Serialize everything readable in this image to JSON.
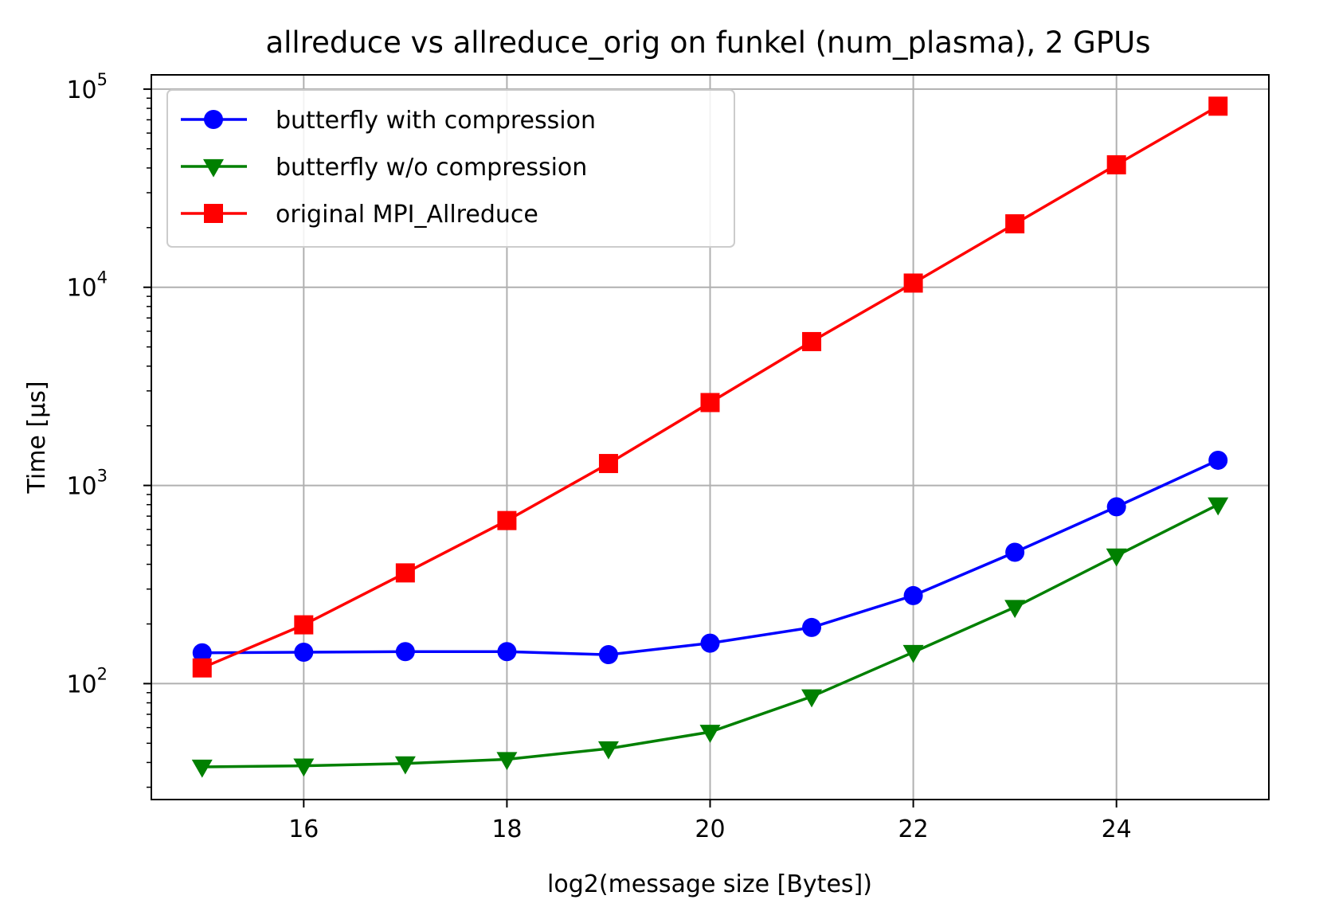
{
  "chart_data": {
    "type": "line",
    "title": "allreduce vs allreduce_orig on funkel (num_plasma), 2 GPUs",
    "xlabel": "log2(message size [Bytes])",
    "ylabel": "Time [µs]",
    "yscale": "log",
    "xlim": [
      14.5,
      25.5
    ],
    "ylim": [
      26,
      118000
    ],
    "grid": true,
    "legend_position": "top-left",
    "x_ticks": [
      16,
      18,
      20,
      22,
      24
    ],
    "y_ticks": [
      {
        "value": 100,
        "base": "10",
        "exp": "2"
      },
      {
        "value": 1000,
        "base": "10",
        "exp": "3"
      },
      {
        "value": 10000,
        "base": "10",
        "exp": "4"
      },
      {
        "value": 100000,
        "base": "10",
        "exp": "5"
      }
    ],
    "x": [
      15,
      16,
      17,
      18,
      19,
      20,
      21,
      22,
      23,
      24,
      25
    ],
    "series": [
      {
        "name": "butterfly with compression",
        "color": "#0000ff",
        "marker": "circle",
        "values": [
          143,
          144,
          145,
          145,
          140,
          160,
          192,
          278,
          460,
          780,
          1340
        ]
      },
      {
        "name": "butterfly w/o compression",
        "color": "#008000",
        "marker": "triangle-down",
        "values": [
          38,
          38.5,
          39.5,
          41.5,
          47,
          57,
          86,
          144,
          243,
          442,
          800
        ]
      },
      {
        "name": "original MPI_Allreduce",
        "color": "#ff0000",
        "marker": "square",
        "values": [
          120,
          198,
          362,
          665,
          1290,
          2620,
          5320,
          10500,
          20900,
          41500,
          82000
        ]
      }
    ]
  }
}
